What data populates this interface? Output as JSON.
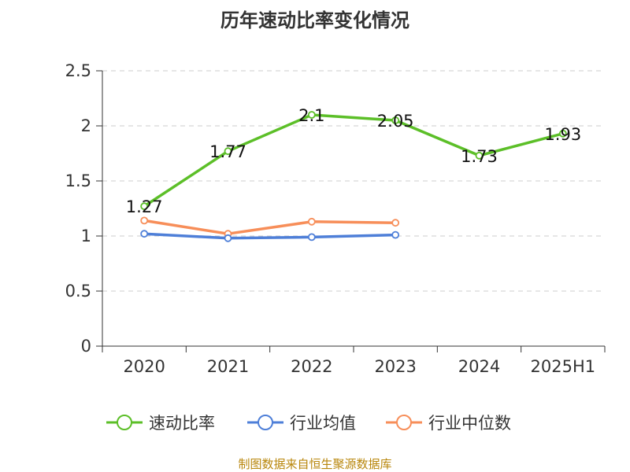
{
  "title": "历年速动比率变化情况",
  "source": "制图数据来自恒生聚源数据库",
  "chart_data": {
    "type": "line",
    "title": "历年速动比率变化情况",
    "categories": [
      "2020",
      "2021",
      "2022",
      "2023",
      "2024",
      "2025H1"
    ],
    "ylim": [
      0,
      2.5
    ],
    "yticks": [
      "0",
      "0.5",
      "1",
      "1.5",
      "2",
      "2.5"
    ],
    "ytick_values": [
      0,
      0.5,
      1,
      1.5,
      2,
      2.5
    ],
    "grid": true,
    "legend_position": "bottom",
    "series": [
      {
        "name": "速动比率",
        "color": "#5cbf28",
        "values": [
          1.27,
          1.77,
          2.1,
          2.05,
          1.73,
          1.93
        ],
        "labels": [
          "1.27",
          "1.77",
          "2.1",
          "2.05",
          "1.73",
          "1.93"
        ]
      },
      {
        "name": "行业均值",
        "color": "#4e7fd8",
        "values": [
          1.02,
          0.98,
          0.99,
          1.01,
          null,
          null
        ]
      },
      {
        "name": "行业中位数",
        "color": "#f78e59",
        "values": [
          1.14,
          1.02,
          1.13,
          1.12,
          null,
          null
        ]
      }
    ]
  }
}
